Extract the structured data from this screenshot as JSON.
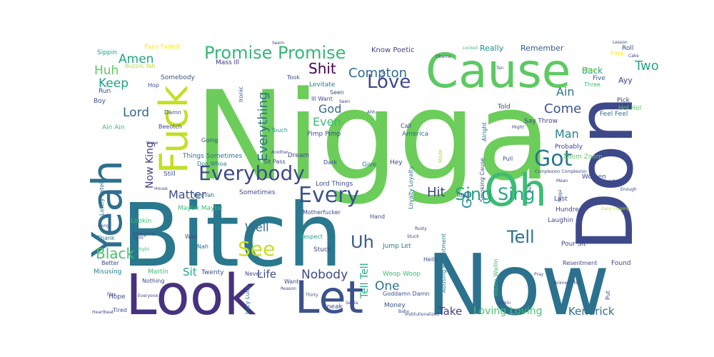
{
  "cloud": {
    "words": [
      {
        "text": "Nigga",
        "color": "#6ccd5a"
      },
      {
        "text": "Bitch",
        "color": "#2a788e"
      },
      {
        "text": "Now",
        "color": "#2c728e"
      },
      {
        "text": "Don",
        "color": "#3e4989"
      },
      {
        "text": "Cause",
        "color": "#5ec962"
      },
      {
        "text": "Look",
        "color": "#46327e"
      },
      {
        "text": "Yeah",
        "color": "#2e6f8e"
      },
      {
        "text": "Fuck",
        "color": "#c2df23"
      },
      {
        "text": "Oh",
        "color": "#3dbc74"
      },
      {
        "text": "Let",
        "color": "#3b528b"
      },
      {
        "text": "Everybody",
        "color": "#3e4a89"
      },
      {
        "text": "Every",
        "color": "#3a538b"
      },
      {
        "text": "Got",
        "color": "#2a768e"
      },
      {
        "text": "Sing Sing",
        "color": "#26a784"
      },
      {
        "text": "Promise Promise",
        "color": "#35b779"
      },
      {
        "text": "Love",
        "color": "#3e4989"
      },
      {
        "text": "Tell",
        "color": "#2c718e"
      },
      {
        "text": "See",
        "color": "#c8e020"
      },
      {
        "text": "Black",
        "color": "#4ac16d"
      },
      {
        "text": "Uh",
        "color": "#365c8d"
      },
      {
        "text": "Everything",
        "color": "#2d708e"
      },
      {
        "text": "Compton",
        "color": "#2f6c8e"
      },
      {
        "text": "Shit",
        "color": "#440154"
      },
      {
        "text": "Amen",
        "color": "#21a585"
      },
      {
        "text": "Huh",
        "color": "#5ec962"
      },
      {
        "text": "Keep",
        "color": "#1f9e89"
      },
      {
        "text": "Lord",
        "color": "#31688e"
      },
      {
        "text": "Two",
        "color": "#22a884"
      },
      {
        "text": "Come",
        "color": "#3b528b"
      },
      {
        "text": "Ain",
        "color": "#2c728e"
      },
      {
        "text": "Man",
        "color": "#26828e"
      },
      {
        "text": "Hit",
        "color": "#414287"
      },
      {
        "text": "Go",
        "color": "#23898e"
      },
      {
        "text": "Even",
        "color": "#3dbc74"
      },
      {
        "text": "God",
        "color": "#31688e"
      },
      {
        "text": "Matter",
        "color": "#3e4989"
      },
      {
        "text": "Now King",
        "color": "#423f85"
      },
      {
        "text": "Well",
        "color": "#2e6e8e"
      },
      {
        "text": "Nobody",
        "color": "#3e4a89"
      },
      {
        "text": "One",
        "color": "#2d708e"
      },
      {
        "text": "Life",
        "color": "#3c508b"
      },
      {
        "text": "Sit",
        "color": "#22a884"
      },
      {
        "text": "Take",
        "color": "#433e85"
      },
      {
        "text": "Loving Loving",
        "color": "#4ac16d"
      },
      {
        "text": "Kendrick",
        "color": "#2c728e"
      },
      {
        "text": "Tell Tell",
        "color": "#27ad81"
      },
      {
        "text": "Know Poetic",
        "color": "#414287"
      },
      {
        "text": "Really",
        "color": "#21918c"
      },
      {
        "text": "Remember",
        "color": "#38588c"
      },
      {
        "text": "Back",
        "color": "#20a386"
      },
      {
        "text": "Roll",
        "color": "#3e4989"
      },
      {
        "text": "King",
        "color": "#fde725"
      },
      {
        "text": "Pass Faded",
        "color": "#fde725"
      },
      {
        "text": "Sippin",
        "color": "#1fa287"
      },
      {
        "text": "Buzzin Yah",
        "color": "#b5de2b"
      },
      {
        "text": "Mass Ill",
        "color": "#46327e"
      },
      {
        "text": "Hop",
        "color": "#3b528b"
      },
      {
        "text": "Somebody",
        "color": "#3b528b"
      },
      {
        "text": "Run",
        "color": "#3e4989"
      },
      {
        "text": "Boy",
        "color": "#3b528b"
      },
      {
        "text": "Damn",
        "color": "#3b528b"
      },
      {
        "text": "Beeotch",
        "color": "#3e4989"
      },
      {
        "text": "Ain Ain",
        "color": "#3dbc74"
      },
      {
        "text": "Going",
        "color": "#3e4989"
      },
      {
        "text": "Touch",
        "color": "#1f9a8a"
      },
      {
        "text": "Things Sometimes",
        "color": "#2d708e"
      },
      {
        "text": "Don Whoa",
        "color": "#2a788e"
      },
      {
        "text": "Still",
        "color": "#3b528b"
      },
      {
        "text": "Yah Yah",
        "color": "#2e6e8e"
      },
      {
        "text": "Maybe Maybe",
        "color": "#3dbc74"
      },
      {
        "text": "Sometimes",
        "color": "#3e4989"
      },
      {
        "text": "Lookin",
        "color": "#3dbc74"
      },
      {
        "text": "Wall",
        "color": "#3e4989"
      },
      {
        "text": "Nah",
        "color": "#2d708e"
      },
      {
        "text": "Thank",
        "color": "#2a788e"
      },
      {
        "text": "Imagine",
        "color": "#3e4989"
      },
      {
        "text": "Better",
        "color": "#3e4989"
      },
      {
        "text": "Misusing",
        "color": "#26828e"
      },
      {
        "text": "Nothing",
        "color": "#3e4989"
      },
      {
        "text": "Martin",
        "color": "#3dbc74"
      },
      {
        "text": "Twenty",
        "color": "#3b528b"
      },
      {
        "text": "Hope",
        "color": "#3e4989"
      },
      {
        "text": "Tired",
        "color": "#3b528b"
      },
      {
        "text": "Lucy Lucy",
        "color": "#2a788e"
      },
      {
        "text": "Lately Lately",
        "color": "#2c728e"
      },
      {
        "text": "Levitate",
        "color": "#2a788e"
      },
      {
        "text": "Seen",
        "color": "#3e4989"
      },
      {
        "text": "Ill Want",
        "color": "#3e4989"
      },
      {
        "text": "Took",
        "color": "#3b528b"
      },
      {
        "text": "Ironic",
        "color": "#3b528b"
      },
      {
        "text": "Pimp Pimp",
        "color": "#3e4989"
      },
      {
        "text": "America",
        "color": "#2d708e"
      },
      {
        "text": "Call",
        "color": "#3e4989"
      },
      {
        "text": "Dream",
        "color": "#3e4989"
      },
      {
        "text": "Sit Pass",
        "color": "#3e4989"
      },
      {
        "text": "Dark",
        "color": "#3e4989"
      },
      {
        "text": "Give",
        "color": "#2a788e"
      },
      {
        "text": "Hey",
        "color": "#3e4989"
      },
      {
        "text": "Lord Things",
        "color": "#3e4989"
      },
      {
        "text": "Hand",
        "color": "#3e4989"
      },
      {
        "text": "Motherfucker",
        "color": "#3e4989"
      },
      {
        "text": "Respect",
        "color": "#1f9e89"
      },
      {
        "text": "Stuck",
        "color": "#3e4989"
      },
      {
        "text": "Never",
        "color": "#3e4989"
      },
      {
        "text": "Want",
        "color": "#3e4989"
      },
      {
        "text": "Jump Let",
        "color": "#2a788e"
      },
      {
        "text": "Hello",
        "color": "#3b528b"
      },
      {
        "text": "Woop Woop",
        "color": "#3dbc74"
      },
      {
        "text": "Goddamn Damn",
        "color": "#3b528b"
      },
      {
        "text": "Money",
        "color": "#3b528b"
      },
      {
        "text": "Sneak",
        "color": "#3e4989"
      },
      {
        "text": "Loyalty Loyalty",
        "color": "#2d708e"
      },
      {
        "text": "Rush",
        "color": "#3e4989"
      },
      {
        "text": "Smoking Cause",
        "color": "#3e4989"
      },
      {
        "text": "Alright",
        "color": "#2d708e"
      },
      {
        "text": "Abusing Resentment",
        "color": "#2a788e"
      },
      {
        "text": "Waitin Waitin",
        "color": "#3dbc74"
      },
      {
        "text": "Told",
        "color": "#3e4989"
      },
      {
        "text": "Say Throw",
        "color": "#3e4989"
      },
      {
        "text": "Pull",
        "color": "#3e4989"
      },
      {
        "text": "Probably",
        "color": "#3e4989"
      },
      {
        "text": "Zoom Zoom",
        "color": "#5ec962"
      },
      {
        "text": "Feel Feel",
        "color": "#2d708e"
      },
      {
        "text": "Pick",
        "color": "#3e4989"
      },
      {
        "text": "Hol Hol",
        "color": "#5ec962"
      },
      {
        "text": "Ayy",
        "color": "#3e4989"
      },
      {
        "text": "Five",
        "color": "#3b528b"
      },
      {
        "text": "Three",
        "color": "#3dbc74"
      },
      {
        "text": "Okay",
        "color": "#a0da39"
      },
      {
        "text": "Women",
        "color": "#3e4989"
      },
      {
        "text": "Said",
        "color": "#3e4989"
      },
      {
        "text": "Last",
        "color": "#3e4989"
      },
      {
        "text": "Hundred",
        "color": "#3e4989"
      },
      {
        "text": "Laughin",
        "color": "#3e4989"
      },
      {
        "text": "Pour Sit",
        "color": "#3e4989"
      },
      {
        "text": "Resentment",
        "color": "#3e4989"
      },
      {
        "text": "Found",
        "color": "#3e4989"
      },
      {
        "text": "Hol",
        "color": "#3e4989"
      },
      {
        "text": "Put",
        "color": "#3e4989"
      },
      {
        "text": "Made",
        "color": "#b5de2b"
      },
      {
        "text": "Complexion Complexion",
        "color": "#3e4989"
      },
      {
        "text": "Easy Flipping",
        "color": "#b5de2b"
      },
      {
        "text": "Enough",
        "color": "#3e4989"
      },
      {
        "text": "Mean",
        "color": "#3e4989"
      },
      {
        "text": "Nigga",
        "color": "#3e4989"
      },
      {
        "text": "Hell",
        "color": "#3e4989"
      },
      {
        "text": "Obama",
        "color": "#3e4989"
      },
      {
        "text": "Locked",
        "color": "#3dbc74"
      },
      {
        "text": "Tan",
        "color": "#3e4989"
      },
      {
        "text": "Might",
        "color": "#3e4989"
      },
      {
        "text": "Ahh",
        "color": "#3e4989"
      },
      {
        "text": "Seen",
        "color": "#3e4989"
      },
      {
        "text": "Another",
        "color": "#3e4989"
      },
      {
        "text": "Know",
        "color": "#3e4989"
      },
      {
        "text": "House",
        "color": "#3e4989"
      },
      {
        "text": "Right",
        "color": "#3dbc74"
      },
      {
        "text": "Gang",
        "color": "#3e4989"
      },
      {
        "text": "Fight",
        "color": "#3e4989"
      },
      {
        "text": "Flex",
        "color": "#3e4989"
      },
      {
        "text": "Everyone",
        "color": "#3e4989"
      },
      {
        "text": "Heartbeat",
        "color": "#3e4989"
      },
      {
        "text": "Reason",
        "color": "#3e4989"
      },
      {
        "text": "Thirty",
        "color": "#3e4989"
      },
      {
        "text": "Santa",
        "color": "#3e4989"
      },
      {
        "text": "Seekin",
        "color": "#3e4989"
      },
      {
        "text": "Institutionalized",
        "color": "#3e4989"
      },
      {
        "text": "Baby",
        "color": "#3e4989"
      },
      {
        "text": "Pray",
        "color": "#3e4989"
      },
      {
        "text": "Ackned",
        "color": "#3e4989"
      },
      {
        "text": "Stuck",
        "color": "#3e4989"
      },
      {
        "text": "Rusty",
        "color": "#3e4989"
      },
      {
        "text": "Seem",
        "color": "#3e4989"
      },
      {
        "text": "Yeah",
        "color": "#3e4989"
      },
      {
        "text": "Cake",
        "color": "#3e4989"
      },
      {
        "text": "Lesson",
        "color": "#3e4989"
      }
    ]
  }
}
